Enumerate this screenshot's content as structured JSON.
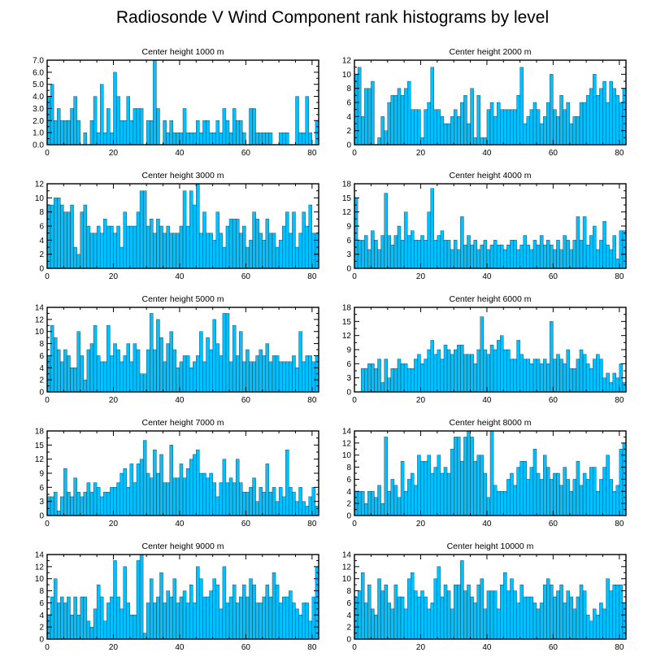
{
  "title": "Radiosonde V Wind Component rank histograms by level",
  "colors": {
    "bar": "#00c0ff",
    "bar_edge": "#1a1a1a",
    "axis": "#000000"
  },
  "chart_data": [
    {
      "type": "bar",
      "title": "Center height 1000 m",
      "x_start": 0,
      "xlim": [
        0,
        82
      ],
      "ylim": [
        0,
        7
      ],
      "xticks": [
        "0",
        "20",
        "40",
        "60",
        "80"
      ],
      "xtick_values": [
        0,
        20,
        40,
        60,
        80
      ],
      "yticks": [
        "0.0",
        "1.0",
        "2.0",
        "3.0",
        "4.0",
        "5.0",
        "6.0",
        "7.0"
      ],
      "ytick_values": [
        0,
        1,
        2,
        3,
        4,
        5,
        6,
        7
      ],
      "values": [
        4,
        5,
        2,
        3,
        2,
        2,
        2,
        3,
        4,
        2,
        0,
        1,
        0,
        2,
        4,
        1,
        5,
        1,
        3,
        1,
        6,
        4,
        2,
        2,
        4,
        2,
        3,
        3,
        3,
        0,
        2,
        2,
        7,
        3,
        0,
        2,
        1,
        2,
        1,
        1,
        1,
        3,
        1,
        1,
        1,
        2,
        1,
        2,
        2,
        1,
        1,
        2,
        1,
        3,
        2,
        1,
        3,
        2,
        2,
        1,
        0,
        3,
        3,
        1,
        1,
        1,
        1,
        1,
        0,
        0,
        1,
        1,
        1,
        0,
        0,
        4,
        1,
        1,
        4,
        1,
        0,
        2
      ],
      "side": "left"
    },
    {
      "type": "bar",
      "title": "Center height 2000 m",
      "x_start": 0,
      "xlim": [
        0,
        82
      ],
      "ylim": [
        0,
        12
      ],
      "xticks": [
        "0",
        "20",
        "40",
        "60",
        "80"
      ],
      "xtick_values": [
        0,
        20,
        40,
        60,
        80
      ],
      "yticks": [
        "0",
        "2",
        "4",
        "6",
        "8",
        "10",
        "12"
      ],
      "ytick_values": [
        0,
        2,
        4,
        6,
        8,
        10,
        12
      ],
      "values": [
        10,
        11,
        4,
        8,
        8,
        9,
        0,
        1,
        4,
        2,
        6,
        7,
        7,
        8,
        7,
        8,
        9,
        5,
        5,
        5,
        1,
        5,
        6,
        11,
        5,
        5,
        4,
        3,
        3,
        4,
        5,
        4,
        6,
        7,
        3,
        8,
        1,
        7,
        1,
        1,
        5,
        6,
        4,
        6,
        5,
        5,
        5,
        5,
        5,
        7,
        11,
        3,
        4,
        5,
        6,
        5,
        3,
        4,
        6,
        10,
        5,
        4,
        7,
        5,
        6,
        3,
        4,
        4,
        6,
        6,
        7,
        8,
        10,
        7,
        8,
        9,
        6,
        9,
        8,
        7,
        6,
        8
      ],
      "side": "right"
    },
    {
      "type": "bar",
      "title": "Center height 3000 m",
      "x_start": 0,
      "xlim": [
        0,
        82
      ],
      "ylim": [
        0,
        12
      ],
      "xticks": [
        "0",
        "20",
        "40",
        "60",
        "80"
      ],
      "xtick_values": [
        0,
        20,
        40,
        60,
        80
      ],
      "yticks": [
        "0",
        "2",
        "4",
        "6",
        "8",
        "10",
        "12"
      ],
      "ytick_values": [
        0,
        2,
        4,
        6,
        8,
        10,
        12
      ],
      "values": [
        9,
        9,
        10,
        10,
        9,
        8,
        8,
        9,
        3,
        2,
        8,
        9,
        6,
        5,
        5,
        6,
        5,
        7,
        6,
        6,
        5,
        6,
        3,
        8,
        6,
        6,
        6,
        8,
        11,
        11,
        6,
        7,
        5,
        7,
        6,
        5,
        6,
        5,
        5,
        5,
        6,
        11,
        6,
        11,
        9,
        12,
        5,
        8,
        5,
        5,
        4,
        8,
        5,
        3,
        6,
        7,
        7,
        7,
        5,
        6,
        3,
        4,
        8,
        7,
        5,
        4,
        7,
        5,
        5,
        3,
        4,
        6,
        8,
        5,
        8,
        3,
        5,
        8,
        6,
        9,
        5,
        5
      ],
      "side": "left"
    },
    {
      "type": "bar",
      "title": "Center height 4000 m",
      "x_start": 0,
      "xlim": [
        0,
        82
      ],
      "ylim": [
        0,
        18
      ],
      "xticks": [
        "0",
        "20",
        "40",
        "60",
        "80"
      ],
      "xtick_values": [
        0,
        20,
        40,
        60,
        80
      ],
      "yticks": [
        "0",
        "3",
        "6",
        "9",
        "12",
        "15",
        "18"
      ],
      "ytick_values": [
        0,
        3,
        6,
        9,
        12,
        15,
        18
      ],
      "values": [
        15,
        6,
        6,
        7,
        4,
        8,
        6,
        4,
        7,
        16,
        7,
        5,
        7,
        9,
        6,
        12,
        7,
        8,
        6,
        6,
        7,
        6,
        12,
        17,
        6,
        7,
        8,
        6,
        6,
        4,
        6,
        4,
        11,
        5,
        7,
        5,
        6,
        4,
        5,
        6,
        4,
        5,
        6,
        5,
        5,
        4,
        5,
        6,
        6,
        4,
        5,
        7,
        5,
        4,
        6,
        5,
        7,
        5,
        6,
        5,
        4,
        6,
        4,
        7,
        6,
        4,
        6,
        11,
        6,
        11,
        5,
        7,
        9,
        4,
        6,
        10,
        5,
        4,
        7,
        2,
        8,
        8
      ],
      "side": "right"
    },
    {
      "type": "bar",
      "title": "Center height 5000 m",
      "x_start": 0,
      "xlim": [
        0,
        82
      ],
      "ylim": [
        0,
        14
      ],
      "xticks": [
        "0",
        "20",
        "40",
        "60",
        "80"
      ],
      "xtick_values": [
        0,
        20,
        40,
        60,
        80
      ],
      "yticks": [
        "0",
        "2",
        "4",
        "6",
        "8",
        "10",
        "12",
        "14"
      ],
      "ytick_values": [
        0,
        2,
        4,
        6,
        8,
        10,
        12,
        14
      ],
      "values": [
        6,
        11,
        9,
        7,
        5,
        7,
        6,
        4,
        4,
        10,
        6,
        2,
        7,
        8,
        11,
        6,
        5,
        5,
        11,
        6,
        8,
        7,
        5,
        6,
        8,
        5,
        8,
        7,
        3,
        3,
        7,
        13,
        7,
        12,
        9,
        5,
        8,
        10,
        7,
        4,
        5,
        6,
        6,
        4,
        5,
        6,
        10,
        5,
        9,
        7,
        12,
        8,
        6,
        13,
        13,
        5,
        11,
        6,
        10,
        5,
        7,
        5,
        5,
        6,
        7,
        6,
        8,
        5,
        6,
        6,
        5,
        5,
        5,
        5,
        6,
        4,
        10,
        5,
        6,
        6,
        5,
        6
      ],
      "side": "left"
    },
    {
      "type": "bar",
      "title": "Center height 6000 m",
      "x_start": 0,
      "xlim": [
        0,
        82
      ],
      "ylim": [
        0,
        18
      ],
      "xticks": [
        "0",
        "20",
        "40",
        "60",
        "80"
      ],
      "xtick_values": [
        0,
        20,
        40,
        60,
        80
      ],
      "yticks": [
        "0",
        "3",
        "6",
        "9",
        "12",
        "15",
        "18"
      ],
      "ytick_values": [
        0,
        3,
        6,
        9,
        12,
        15,
        18
      ],
      "values": [
        0,
        0,
        5,
        5,
        6,
        6,
        5,
        7,
        2,
        7,
        3,
        5,
        5,
        7,
        6,
        6,
        5,
        5,
        7,
        8,
        6,
        7,
        9,
        11,
        8,
        9,
        7,
        10,
        9,
        8,
        9,
        10,
        10,
        8,
        8,
        8,
        6,
        9,
        16,
        9,
        8,
        10,
        9,
        11,
        12,
        9,
        9,
        7,
        7,
        11,
        8,
        7,
        7,
        6,
        7,
        7,
        6,
        7,
        6,
        15,
        7,
        8,
        7,
        6,
        9,
        5,
        5,
        7,
        9,
        8,
        6,
        5,
        7,
        8,
        7,
        3,
        4,
        2,
        4,
        3,
        6,
        2
      ],
      "side": "right"
    },
    {
      "type": "bar",
      "title": "Center height 7000 m",
      "x_start": 0,
      "xlim": [
        0,
        82
      ],
      "ylim": [
        0,
        18
      ],
      "xticks": [
        "0",
        "20",
        "40",
        "60",
        "80"
      ],
      "xtick_values": [
        0,
        20,
        40,
        60,
        80
      ],
      "yticks": [
        "0",
        "3",
        "6",
        "9",
        "12",
        "15",
        "18"
      ],
      "ytick_values": [
        0,
        3,
        6,
        9,
        12,
        15,
        18
      ],
      "values": [
        4,
        4,
        5,
        1,
        4,
        10,
        5,
        4,
        8,
        5,
        4,
        5,
        7,
        5,
        7,
        6,
        4,
        5,
        5,
        6,
        6,
        7,
        9,
        10,
        6,
        11,
        7,
        11,
        12,
        16,
        9,
        8,
        14,
        9,
        13,
        7,
        7,
        15,
        8,
        8,
        11,
        8,
        10,
        12,
        13,
        14,
        9,
        9,
        8,
        9,
        7,
        4,
        7,
        12,
        7,
        8,
        7,
        12,
        7,
        5,
        5,
        6,
        8,
        3,
        6,
        5,
        11,
        5,
        6,
        3,
        6,
        4,
        14,
        6,
        5,
        3,
        6,
        3,
        2,
        4,
        6,
        2
      ],
      "side": "left"
    },
    {
      "type": "bar",
      "title": "Center height 8000 m",
      "x_start": 0,
      "xlim": [
        0,
        82
      ],
      "ylim": [
        0,
        14
      ],
      "xticks": [
        "0",
        "20",
        "40",
        "60",
        "80"
      ],
      "xtick_values": [
        0,
        20,
        40,
        60,
        80
      ],
      "yticks": [
        "0",
        "2",
        "4",
        "6",
        "8",
        "10",
        "12",
        "14"
      ],
      "ytick_values": [
        0,
        2,
        4,
        6,
        8,
        10,
        12,
        14
      ],
      "values": [
        4,
        4,
        4,
        2,
        4,
        4,
        3,
        5,
        2,
        13,
        4,
        6,
        5,
        3,
        9,
        4,
        6,
        7,
        5,
        10,
        9,
        9,
        10,
        7,
        8,
        10,
        7,
        8,
        7,
        11,
        13,
        13,
        9,
        13,
        14,
        13,
        9,
        10,
        10,
        7,
        3,
        14,
        5,
        4,
        4,
        4,
        6,
        7,
        5,
        8,
        9,
        9,
        6,
        8,
        11,
        7,
        6,
        10,
        8,
        6,
        7,
        7,
        5,
        8,
        6,
        4,
        6,
        9,
        5,
        7,
        6,
        8,
        8,
        4,
        6,
        8,
        10,
        6,
        4,
        5,
        11,
        12
      ],
      "side": "right"
    },
    {
      "type": "bar",
      "title": "Center height 9000 m",
      "x_start": 0,
      "xlim": [
        0,
        82
      ],
      "ylim": [
        0,
        14
      ],
      "xticks": [
        "0",
        "20",
        "40",
        "60",
        "80"
      ],
      "xtick_values": [
        0,
        20,
        40,
        60,
        80
      ],
      "yticks": [
        "0",
        "2",
        "4",
        "6",
        "8",
        "10",
        "12",
        "14"
      ],
      "ytick_values": [
        0,
        2,
        4,
        6,
        8,
        10,
        12,
        14
      ],
      "values": [
        4,
        7,
        10,
        6,
        7,
        6,
        7,
        4,
        7,
        4,
        7,
        7,
        3,
        2,
        5,
        9,
        7,
        3,
        6,
        7,
        13,
        7,
        5,
        12,
        6,
        4,
        4,
        13,
        14,
        1,
        6,
        10,
        6,
        7,
        11,
        6,
        8,
        7,
        10,
        6,
        7,
        8,
        6,
        9,
        6,
        12,
        10,
        7,
        7,
        8,
        10,
        9,
        5,
        12,
        6,
        7,
        9,
        6,
        7,
        9,
        7,
        10,
        9,
        6,
        6,
        7,
        9,
        7,
        11,
        9,
        6,
        7,
        7,
        8,
        6,
        5,
        4,
        6,
        6,
        3,
        7,
        12
      ],
      "side": "left"
    },
    {
      "type": "bar",
      "title": "Center height 10000 m",
      "x_start": 0,
      "xlim": [
        0,
        82
      ],
      "ylim": [
        0,
        14
      ],
      "xticks": [
        "0",
        "20",
        "40",
        "60",
        "80"
      ],
      "xtick_values": [
        0,
        20,
        40,
        60,
        80
      ],
      "yticks": [
        "0",
        "2",
        "4",
        "6",
        "8",
        "10",
        "12",
        "14"
      ],
      "ytick_values": [
        0,
        2,
        4,
        6,
        8,
        10,
        12,
        14
      ],
      "values": [
        7,
        8,
        11,
        6,
        9,
        5,
        4,
        10,
        8,
        9,
        6,
        5,
        9,
        7,
        7,
        5,
        10,
        11,
        8,
        7,
        8,
        7,
        5,
        6,
        10,
        12,
        7,
        9,
        8,
        5,
        9,
        9,
        13,
        8,
        9,
        7,
        6,
        9,
        10,
        5,
        8,
        8,
        8,
        5,
        9,
        11,
        8,
        10,
        8,
        6,
        9,
        7,
        7,
        7,
        6,
        5,
        6,
        9,
        10,
        9,
        7,
        8,
        9,
        6,
        8,
        7,
        5,
        7,
        9,
        8,
        4,
        3,
        5,
        4,
        6,
        5,
        10,
        8,
        9,
        9,
        9,
        6
      ],
      "side": "right"
    }
  ]
}
